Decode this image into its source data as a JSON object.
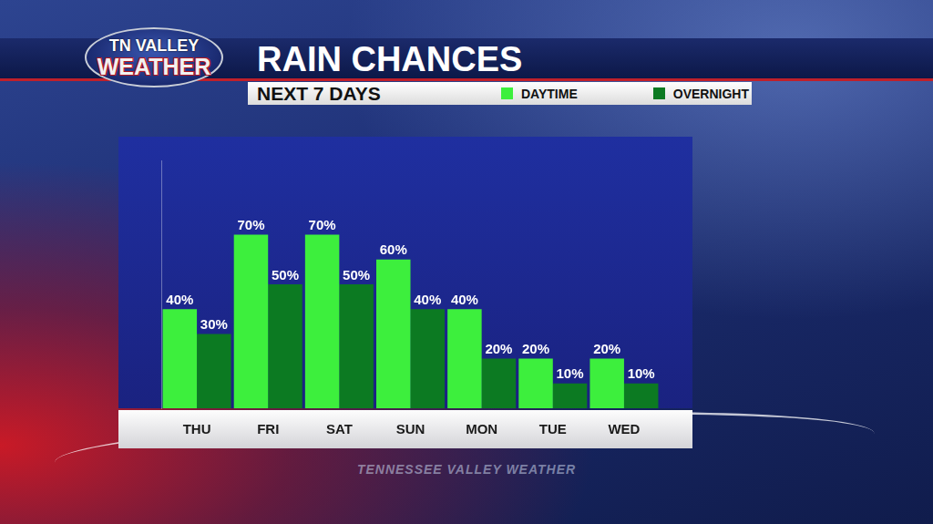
{
  "chart_data": {
    "type": "bar",
    "title": "RAIN CHANCES",
    "subtitle": "NEXT 7 DAYS",
    "logo": [
      "TN VALLEY",
      "WEATHER"
    ],
    "watermark": "TENNESSEE VALLEY WEATHER",
    "categories": [
      "THU",
      "FRI",
      "SAT",
      "SUN",
      "MON",
      "TUE",
      "WED"
    ],
    "series": [
      {
        "name": "DAYTIME",
        "color": "#3def3d",
        "values": [
          40,
          70,
          70,
          60,
          40,
          20,
          20
        ],
        "value_labels": [
          "40%",
          "70%",
          "70%",
          "60%",
          "40%",
          "20%",
          "20%"
        ]
      },
      {
        "name": "OVERNIGHT",
        "color": "#0c7a22",
        "values": [
          30,
          50,
          50,
          40,
          20,
          10,
          10
        ],
        "value_labels": [
          "30%",
          "50%",
          "50%",
          "40%",
          "20%",
          "10%",
          "10%"
        ]
      }
    ],
    "ylim": [
      0,
      100
    ],
    "grid": false,
    "legend": "top",
    "data_labels": true,
    "tick_labels": "x"
  }
}
